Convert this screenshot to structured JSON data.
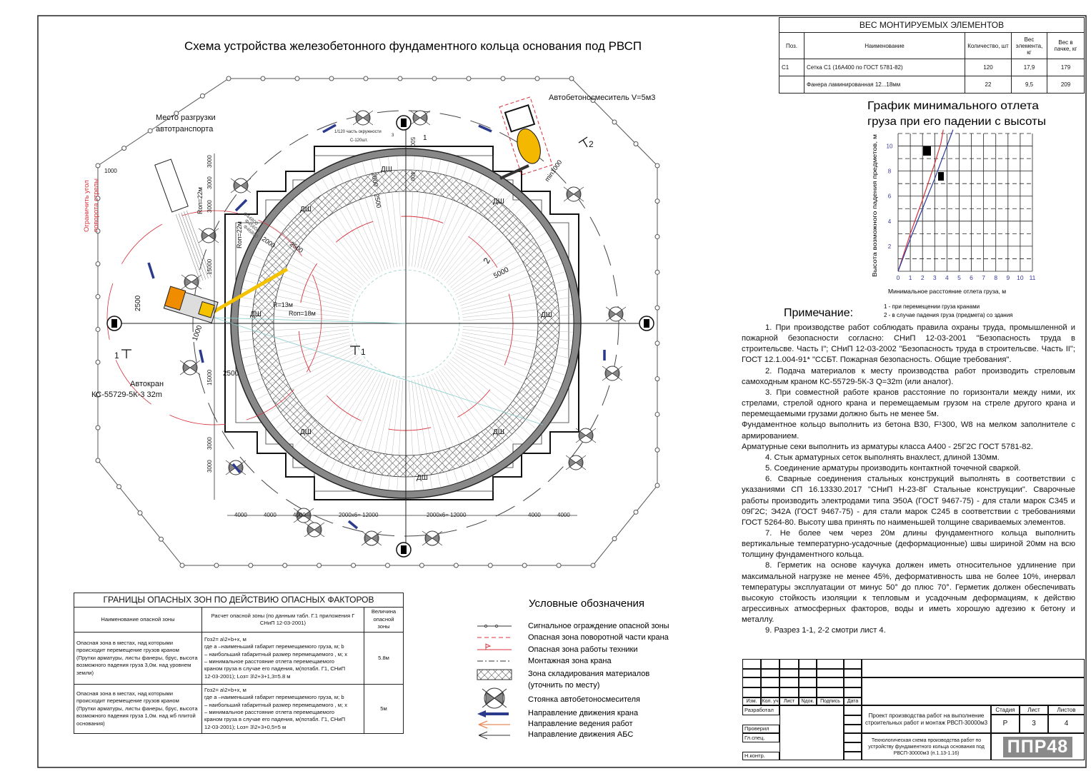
{
  "drawing": {
    "title": "Схема устройства железобетонного фундаментного кольца основания под РВСП",
    "labels": {
      "unload_line1": "Место разгрузки",
      "unload_line2": "автотранспорта",
      "mixer": "Автобетоносмеситель V=5м3",
      "limit_line1": "Ограничить угол",
      "limit_line2": "поворота стрелы",
      "crane_line1": "Автокран",
      "crane_line2": "КС-55729-5К-3 32m",
      "circle_part": "1/120 часть окружности",
      "mesh_count": "С-120шт.",
      "dsh": "ДШ",
      "ron22": "Rоп=22м",
      "r13": "R=13м",
      "ron18": "Rоп=18м",
      "min1000": "min1000",
      "d4480": "Ф44800",
      "d4560": "Ф45600",
      "d4680": "Ф46800",
      "dim1000": "1000",
      "dim2500": "2500",
      "dim2000": "2000",
      "dim5000": "5000",
      "dim3000": "3000",
      "dim15000": "15000",
      "dim4000": "4000",
      "dim12000": "2000х6= 12000",
      "dim400": "400",
      "dim500": "500",
      "dim3": "3",
      "sec1": "1",
      "sec2": "2"
    },
    "colors": {
      "crane": "#f08c00",
      "boom": "#f5c200",
      "danger": "#d8323c",
      "arrow": "#2b3a8c",
      "mesh": "#555555"
    }
  },
  "weights_table": {
    "title": "ВЕС МОНТИРУЕМЫХ ЭЛЕМЕНТОВ",
    "headers": [
      "Поз.",
      "Наименование",
      "Количество, шт",
      "Вес элемента, кг",
      "Вес в пачке, кг"
    ],
    "rows": [
      [
        "С1",
        "Сетка С1 (16А400 по ГОСТ 5781-82)",
        "120",
        "17,9",
        "179"
      ],
      [
        "",
        "Фанера ламинированная 12...18мм",
        "22",
        "9,5",
        "209"
      ]
    ]
  },
  "chart_data": {
    "type": "line",
    "title": "График минимального отлета груза при его падении с высоты",
    "title_lines": [
      "График минимального отлета",
      "груза при его падении с высоты"
    ],
    "xlabel": "Минимальное расстояние отлета груза, м",
    "ylabel": "Высота возможного падения предметов, м",
    "xlim": [
      0,
      11
    ],
    "ylim": [
      0,
      11
    ],
    "xticks": [
      "0",
      "1",
      "2",
      "3",
      "4",
      "5",
      "6",
      "7",
      "8",
      "9",
      "10",
      "11"
    ],
    "yticks": [
      "2",
      "4",
      "6",
      "8",
      "10"
    ],
    "grid": true,
    "series": [
      {
        "name": "1 - при перемещении груза кранами",
        "color": "#d8323c",
        "x": [
          0,
          1,
          2,
          3,
          3.5,
          3.7
        ],
        "y": [
          0,
          3,
          5.7,
          8.6,
          10.2,
          11.3
        ]
      },
      {
        "name": "2 - в случае падения груза (предмета) со здания",
        "color": "#2b3a9c",
        "x": [
          0,
          1,
          2,
          3,
          4,
          4.5
        ],
        "y": [
          0,
          2.6,
          5,
          7.4,
          10,
          11.3
        ]
      }
    ]
  },
  "notes": {
    "title": "Примечание:",
    "paragraphs": [
      {
        "indent": true,
        "text": "1.  При производстве работ соблюдать правила охраны труда, промышленной и пожарной безопасности согласно: СНиП 12-03-2001 \"Безопасность труда в строительсве. Часть I\"; СНиП 12-03-2002 \"Безопасность труда в строительсве. Часть II\"; ГОСТ 12.1.004-91* \"ССБТ. Пожарная безопасность. Общие требования\"."
      },
      {
        "indent": true,
        "text": "2.  Подача материалов к месту производства работ производить стреловым самоходным краном КС-55729-5К-3 Q=32m (или аналог)."
      },
      {
        "indent": true,
        "text": "3.  При совместной работе кранов расстояние по горизонтали между ними, их стрелами, стрелой одного крана и перемещаемым грузом на стреле другого крана и перемещаемыми грузами должно быть не менее 5м."
      },
      {
        "indent": false,
        "text": "Фундаментное кольцо выполнить из бетона В30, F¹300, W8 на мелком заполнителе с армированием."
      },
      {
        "indent": false,
        "text": "Арматурные секи выполнить из арматуры класса А400 - 25Г2С ГОСТ 5781-82."
      },
      {
        "indent": true,
        "text": "4.  Стык арматурных сеток выполнять внахлест, длиной 130мм."
      },
      {
        "indent": true,
        "text": "5.  Соединение арматуры производить контактной точечной сваркой."
      },
      {
        "indent": true,
        "text": "6.  Сварные соединения стальных конструкций выполнять в соответствии с указаниями СП 16.13330.2017 \"СНиП Н-23-8Г Стальные конструкции\". Сварочные работы производить электродами типа Э50А (ГОСТ 9467-75) - для стали марок С345 и 09Г2С; Э42А (ГОСТ 9467-75) - для стали марок С245 в соответствии с требованиями ГОСТ 5264-80. Высоту шва принять по наименьшей толщине свариваемых элементов."
      },
      {
        "indent": true,
        "text": "7.  Не более чем через 20м длины фундаментного кольца выполнить вертикальные температурно-усадочные (деформационные) швы шириной 20мм на всю толщину фундаментного кольца."
      },
      {
        "indent": true,
        "text": "8.  Герметик на основе каучука должен иметь относительное удлинение при максимальной нагрузке не менее 45%, деформативность шва не более 10%, инервал температуры эксплуатации от минус 50° до плюс 70°. Герметик должен обеспечивать высокую стойкость изоляции к тепловым и усадочным деформациям, к действю агрессивных атмосферных факторов, воды и иметь хорошую адгезию к бетону и металлу."
      },
      {
        "indent": true,
        "text": "9.  Разрез 1-1, 2-2 смотри лист 4."
      }
    ]
  },
  "hazard_table": {
    "title": "ГРАНИЦЫ ОПАСНЫХ ЗОН ПО ДЕЙСТВИЮ ОПАСНЫХ ФАКТОРОВ",
    "headers": [
      "Наименование опасной зоны",
      "Расчет опасной зоны (по данным табл. Г.1 приложения Г СНиП 12-03-2001)",
      "Величина опасной зоны"
    ],
    "rows": [
      {
        "name": "Опасная зона в местах, над которыми происходит перемещение грузов краном (Прутки арматуры, листы фанеры, брус, высота возможного падения груза 3,0м. над уровнем земли)",
        "calc": [
          "Гоз2= a\\2+b+x, м",
          "где a –наименьший габарит перемещаемого груза, м; b",
          "– наибольший габаритный размер перемещаемого , м; x",
          "– минимальное расстояние отлета перемещаемого",
          "краном груза в случае его падения, м(потабл. Г1, СНиП",
          "12-03-2001); Lоз= 3\\2+3+1,3=5.8 м"
        ],
        "value": "5.8м"
      },
      {
        "name": "Опасная зона в местах, над которыми происходит перемещение грузов краном (Прутки арматуры, листы фанеры, брус, высота возможного падения груза 1,0м. над жб плитой основания)",
        "calc": [
          "Гоз2= a\\2+b+x, м",
          "где a –наименьший габарит перемещаемого груза, м; b",
          "– наибольший габаритный размер перемещаемого , м; x",
          "– минимальное расстояние отлета перемещаемого",
          "краном груза в случае его падения, м(потабл. Г1, СНиП",
          "12-03-2001); Lоз= 3\\2+3+0,5=5 м"
        ],
        "value": "5м"
      }
    ]
  },
  "legend": {
    "title": "Условные обозначения",
    "items": [
      {
        "icon": "signal-fence-icon",
        "label": "Сигнальное ограждение опасной зоны"
      },
      {
        "icon": "crane-rotation-zone-icon",
        "label": "Опасная зона поворотной части крана"
      },
      {
        "icon": "machinery-zone-icon",
        "label": "Опасная зона работы техники"
      },
      {
        "icon": "crane-mounting-zone-icon",
        "label": "Монтажная зона крана"
      },
      {
        "icon": "storage-zone-icon",
        "label": "Зона складирования материалов"
      },
      {
        "icon": "",
        "label": "(уточнить по месту)"
      },
      {
        "icon": "mixer-parking-icon",
        "label": "Стоянка автобетоносмесителя"
      },
      {
        "icon": "crane-direction-arrow-icon",
        "label": "Направление движения крана"
      },
      {
        "icon": "work-direction-arrow-icon",
        "label": "Направление ведения работ"
      },
      {
        "icon": "mixer-direction-arrow-icon",
        "label": "Направление движения АБС"
      }
    ]
  },
  "title_block": {
    "headers": [
      "Изм.",
      "Кол. уч",
      "Лист",
      "Nдок.",
      "Подпись",
      "Дата"
    ],
    "roles": [
      "Разработал",
      "Проверил",
      "Гл.спец.",
      "Н.контр."
    ],
    "project": "Проект производства работ на выполнение строительных работ и монтаж РВСП-30000м3",
    "stage_label": "Стадия",
    "sheet_label": "Лист",
    "sheets_label": "Листов",
    "stage": "Р",
    "sheet": "3",
    "sheets": "4",
    "drawing_name": "Технологическая схема производства работ по устройству фундаментного кольца основания под РВСП-30000м3 (п.1.13-1.16)",
    "logo": "ППР48"
  }
}
